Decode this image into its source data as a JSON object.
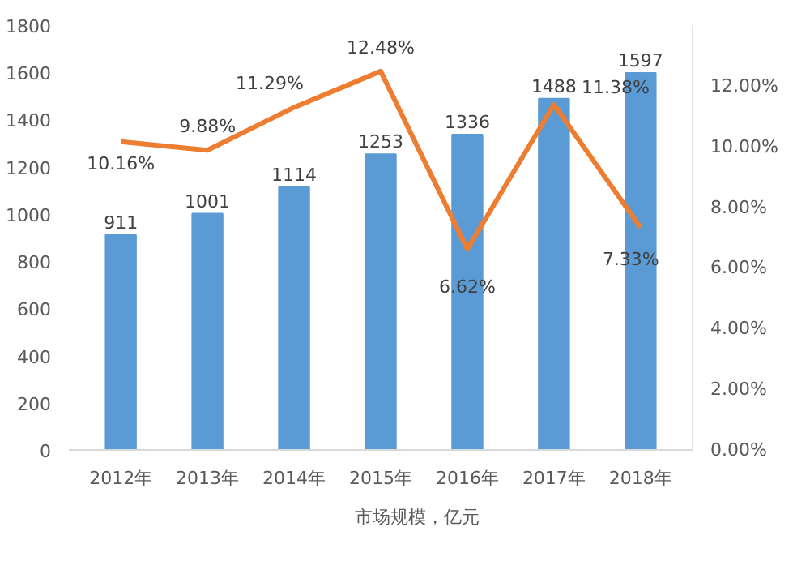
{
  "chart_data": {
    "type": "bar",
    "categories": [
      "2012年",
      "2013年",
      "2014年",
      "2015年",
      "2016年",
      "2017年",
      "2018年"
    ],
    "series": [
      {
        "name": "市场规模，亿元",
        "color": "#5b9bd5",
        "values": [
          911,
          1001,
          1114,
          1253,
          1336,
          1488,
          1597
        ],
        "value_labels": [
          "911",
          "1001",
          "1114",
          "1253",
          "1336",
          "1488",
          "1597"
        ]
      },
      {
        "type": "line",
        "axis": "y2",
        "color": "#ed7d31",
        "values": [
          10.16,
          9.88,
          11.29,
          12.48,
          6.62,
          11.38,
          7.33
        ],
        "value_labels": [
          "10.16%",
          "9.88%",
          "11.29%",
          "12.48%",
          "6.62%",
          "11.38%",
          "7.33%"
        ]
      }
    ],
    "ylim": [
      0,
      1800
    ],
    "yticks": [
      0,
      200,
      400,
      600,
      800,
      1000,
      1200,
      1400,
      1600,
      1800
    ],
    "y2lim": [
      0,
      14
    ],
    "y2ticks": [
      {
        "value": 0,
        "label": "0.00%"
      },
      {
        "value": 2,
        "label": "2.00%"
      },
      {
        "value": 4,
        "label": "4.00%"
      },
      {
        "value": 6,
        "label": "6.00%"
      },
      {
        "value": 8,
        "label": "8.00%"
      },
      {
        "value": 10,
        "label": "10.00%"
      },
      {
        "value": 12,
        "label": "12.00%"
      }
    ],
    "grid": false,
    "legend": "bottom",
    "marker": "none",
    "line_style": "solid"
  }
}
